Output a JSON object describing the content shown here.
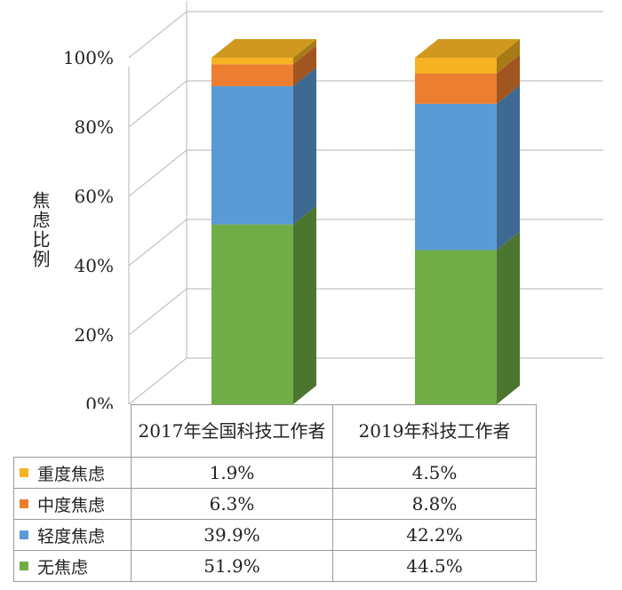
{
  "chart_data": {
    "type": "bar",
    "stacked": true,
    "three_d": true,
    "ylabel": "焦虑比例",
    "ylim": [
      0,
      100
    ],
    "yticks": [
      "0%",
      "20%",
      "40%",
      "60%",
      "80%",
      "100%"
    ],
    "categories": [
      "2017年全国科技工作者",
      "2019年科技工作者"
    ],
    "series": [
      {
        "name": "重度焦虑",
        "color": "#F5B323",
        "values": [
          1.9,
          4.5
        ],
        "labels": [
          "1.9%",
          "4.5%"
        ]
      },
      {
        "name": "中度焦虑",
        "color": "#ED7D31",
        "values": [
          6.3,
          8.8
        ],
        "labels": [
          "6.3%",
          "8.8%"
        ]
      },
      {
        "name": "轻度焦虑",
        "color": "#5B9BD5",
        "values": [
          39.9,
          42.2
        ],
        "labels": [
          "39.9%",
          "42.2%"
        ]
      },
      {
        "name": "无焦虑",
        "color": "#70AD47",
        "values": [
          51.9,
          44.5
        ],
        "labels": [
          "51.9%",
          "44.5%"
        ]
      }
    ],
    "grid": true,
    "legend": "data-table"
  }
}
